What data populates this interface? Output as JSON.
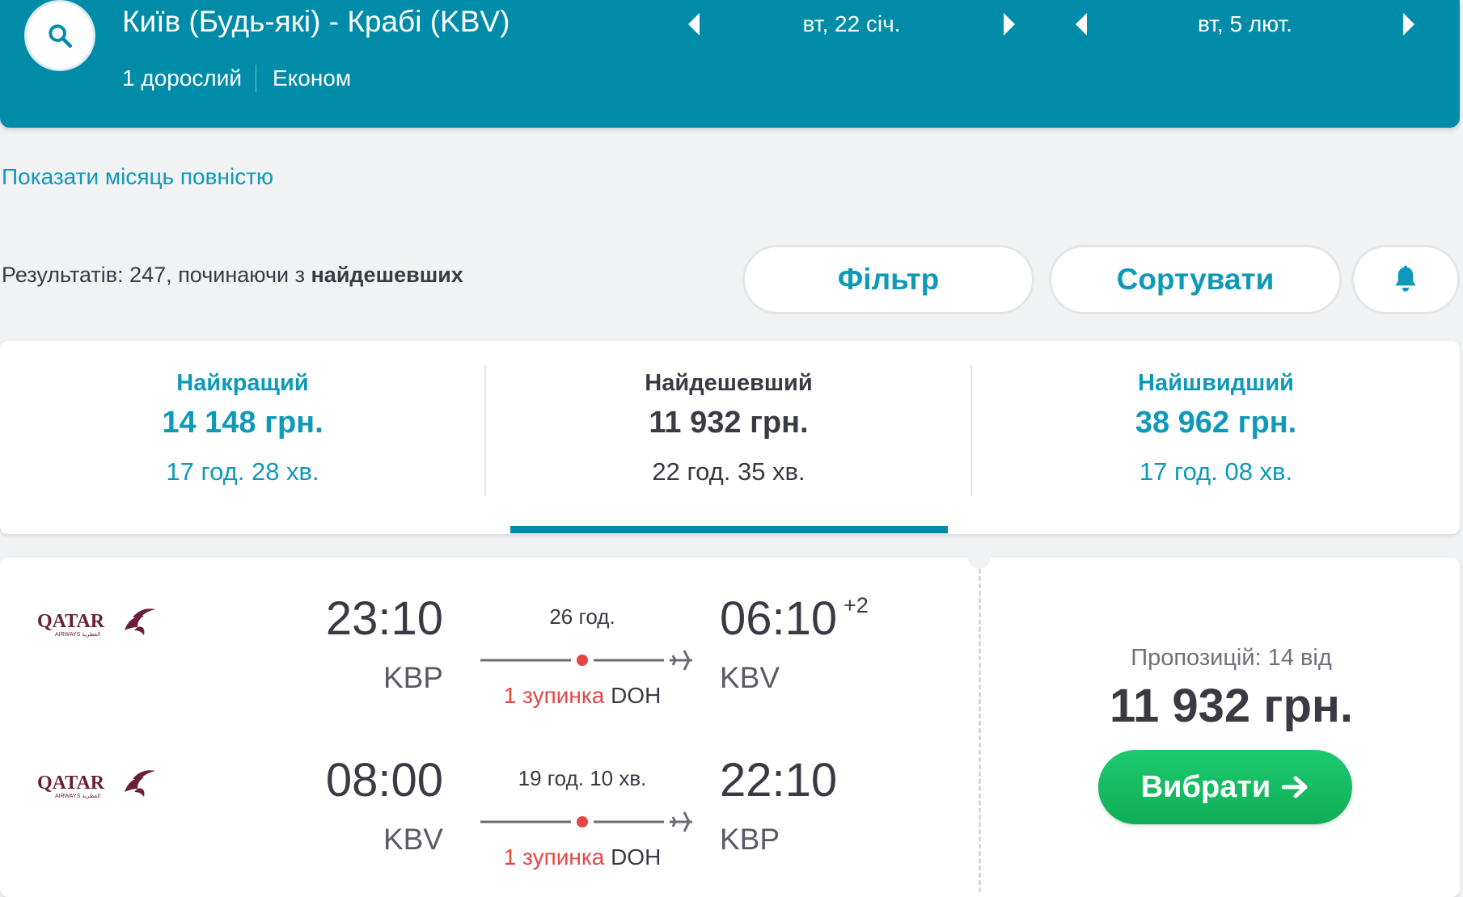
{
  "header": {
    "route_title": "Київ (Будь-які) - Крабі (KBV)",
    "passengers": "1 дорослий",
    "cabin_class": "Економ",
    "depart_date": "вт, 22 січ.",
    "return_date": "вт, 5 лют."
  },
  "month_link": "Показати місяць повністю",
  "results": {
    "prefix": "Результатів: 247, починаючи з ",
    "sort_label": "найдешевших"
  },
  "actions": {
    "filter_label": "Фільтр",
    "sort_label": "Сортувати"
  },
  "tabs": [
    {
      "title": "Найкращий",
      "price": "14 148 грн.",
      "duration": "17 год. 28 хв."
    },
    {
      "title": "Найдешевший",
      "price": "11 932 грн.",
      "duration": "22 год. 35 хв."
    },
    {
      "title": "Найшвидший",
      "price": "38 962 грн.",
      "duration": "17 год. 08 хв."
    }
  ],
  "active_tab": "Найдешевший",
  "flight": {
    "legs": [
      {
        "airline": "QATAR",
        "airline_sub": "AIRWAYS القطرية",
        "dep_time": "23:10",
        "dep_code": "KBP",
        "duration": "26 год.",
        "stops_count": "1 зупинка",
        "stop_code": "DOH",
        "arr_time": "06:10",
        "arr_code": "KBV",
        "day_offset": "+2"
      },
      {
        "airline": "QATAR",
        "airline_sub": "AIRWAYS القطرية",
        "dep_time": "08:00",
        "dep_code": "KBV",
        "duration": "19 год. 10 хв.",
        "stops_count": "1 зупинка",
        "stop_code": "DOH",
        "arr_time": "22:10",
        "arr_code": "KBP",
        "day_offset": ""
      }
    ],
    "offers_label": "Пропозицій: 14 від",
    "price": "11 932 грн.",
    "select_label": "Вибрати"
  },
  "colors": {
    "brand_teal": "#008ca8",
    "link_blue": "#0f99b8",
    "accent_green": "#13b85e",
    "stop_red": "#e64545",
    "qatar_maroon": "#6b1e3c"
  },
  "icons": [
    "search-icon",
    "chevron-left-icon",
    "chevron-right-icon",
    "bell-icon",
    "plane-icon",
    "arrow-right-icon",
    "qatar-oryx-icon"
  ]
}
